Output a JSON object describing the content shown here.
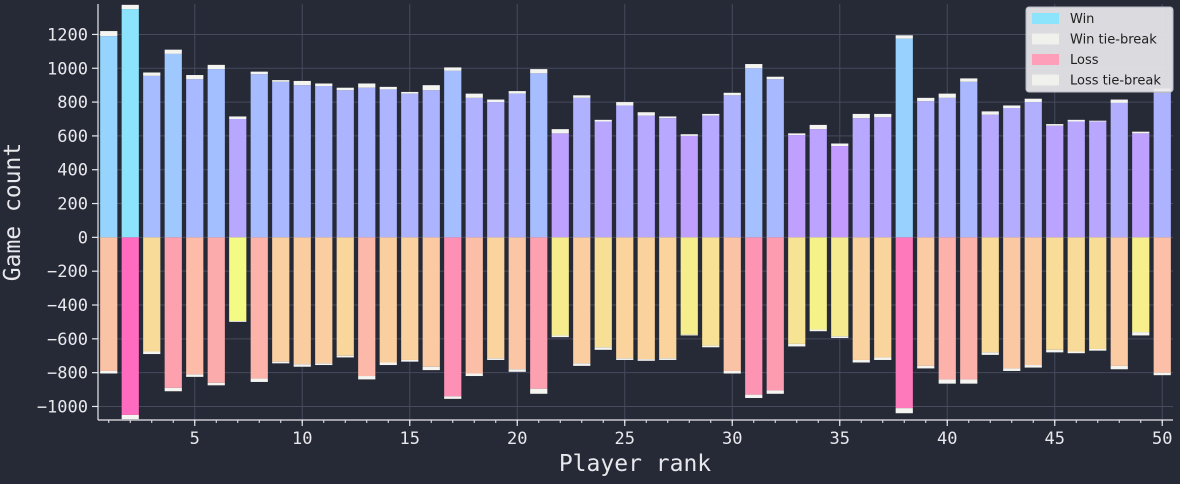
{
  "chart_data": {
    "type": "bar",
    "title": "",
    "xlabel": "Player rank",
    "ylabel": "Game count",
    "xlim": [
      0.5,
      50.5
    ],
    "ylim": [
      -1080,
      1380
    ],
    "x_ticks": [
      5,
      10,
      15,
      20,
      25,
      30,
      35,
      40,
      45,
      50
    ],
    "y_ticks": [
      -1000,
      -800,
      -600,
      -400,
      -200,
      0,
      200,
      400,
      600,
      800,
      1000,
      1200
    ],
    "grid": true,
    "legend": {
      "position": "top-right",
      "entries": [
        {
          "label": "Win",
          "color": "#8be3fc"
        },
        {
          "label": "Win tie-break",
          "color": "#f0f0ec"
        },
        {
          "label": "Loss",
          "color": "#ff9eb8"
        },
        {
          "label": "Loss tie-break",
          "color": "#f0f0ec"
        }
      ]
    },
    "x": [
      1,
      2,
      3,
      4,
      5,
      6,
      7,
      8,
      9,
      10,
      11,
      12,
      13,
      14,
      15,
      16,
      17,
      18,
      19,
      20,
      21,
      22,
      23,
      24,
      25,
      26,
      27,
      28,
      29,
      30,
      31,
      32,
      33,
      34,
      35,
      36,
      37,
      38,
      39,
      40,
      41,
      42,
      43,
      44,
      45,
      46,
      47,
      48,
      49,
      50
    ],
    "series": [
      {
        "name": "Win",
        "values": [
          1190,
          1350,
          955,
          1085,
          935,
          995,
          700,
          965,
          920,
          900,
          895,
          870,
          885,
          875,
          850,
          870,
          985,
          825,
          800,
          850,
          970,
          615,
          825,
          685,
          780,
          720,
          705,
          600,
          720,
          840,
          1000,
          935,
          605,
          640,
          540,
          705,
          710,
          1175,
          805,
          825,
          920,
          725,
          765,
          800,
          660,
          685,
          685,
          795,
          615,
          855
        ]
      },
      {
        "name": "Win tie-break",
        "values": [
          30,
          25,
          20,
          25,
          25,
          25,
          15,
          15,
          10,
          25,
          15,
          15,
          25,
          15,
          10,
          30,
          20,
          25,
          15,
          15,
          25,
          25,
          15,
          10,
          20,
          20,
          10,
          10,
          10,
          15,
          25,
          15,
          10,
          25,
          15,
          25,
          20,
          20,
          20,
          25,
          20,
          20,
          15,
          20,
          10,
          10,
          5,
          20,
          10,
          25
        ]
      },
      {
        "name": "Loss",
        "values": [
          -790,
          -1050,
          -675,
          -890,
          -810,
          -860,
          -495,
          -835,
          -735,
          -750,
          -745,
          -700,
          -820,
          -740,
          -725,
          -765,
          -940,
          -805,
          -715,
          -780,
          -895,
          -580,
          -745,
          -650,
          -715,
          -720,
          -715,
          -575,
          -640,
          -790,
          -930,
          -905,
          -630,
          -545,
          -585,
          -725,
          -710,
          -1010,
          -760,
          -840,
          -840,
          -680,
          -775,
          -755,
          -665,
          -675,
          -660,
          -760,
          -560,
          -800
        ]
      },
      {
        "name": "Loss tie-break",
        "values": [
          -15,
          -25,
          -15,
          -20,
          -15,
          -15,
          -5,
          -20,
          -10,
          -15,
          -10,
          -10,
          -20,
          -15,
          -10,
          -20,
          -15,
          -15,
          -10,
          -15,
          -30,
          -10,
          -15,
          -15,
          -10,
          -10,
          -10,
          -5,
          -10,
          -15,
          -20,
          -20,
          -15,
          -10,
          -10,
          -15,
          -15,
          -30,
          -15,
          -25,
          -25,
          -15,
          -15,
          -15,
          -15,
          -10,
          -10,
          -20,
          -20,
          -15
        ]
      }
    ]
  }
}
